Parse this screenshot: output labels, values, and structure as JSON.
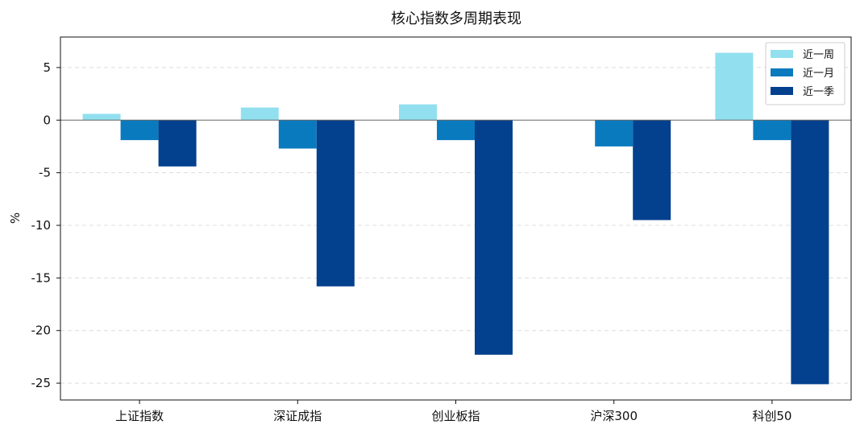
{
  "chart_data": {
    "type": "bar",
    "title": "核心指数多周期表现",
    "xlabel": "",
    "ylabel": "%",
    "categories": [
      "上证指数",
      "深证成指",
      "创业板指",
      "沪深300",
      "科创50"
    ],
    "series": [
      {
        "name": "近一周",
        "color": "#92e0ef",
        "values": [
          0.6,
          1.2,
          1.5,
          0.0,
          6.4
        ]
      },
      {
        "name": "近一月",
        "color": "#0a7abf",
        "values": [
          -1.9,
          -2.7,
          -1.9,
          -2.5,
          -1.9
        ]
      },
      {
        "name": "近一季",
        "color": "#03408d",
        "values": [
          -4.4,
          -15.8,
          -22.3,
          -9.5,
          -25.1
        ]
      }
    ],
    "ylim": [
      -26.6,
      7.9
    ],
    "yticks": [
      5,
      0,
      -5,
      -10,
      -15,
      -20,
      -25
    ],
    "ytick_labels": [
      "5",
      "0",
      "-5",
      "-10",
      "-15",
      "-20",
      "-25"
    ],
    "grid": "y-dashed",
    "legend_position": "top-right",
    "zero_line": true
  }
}
